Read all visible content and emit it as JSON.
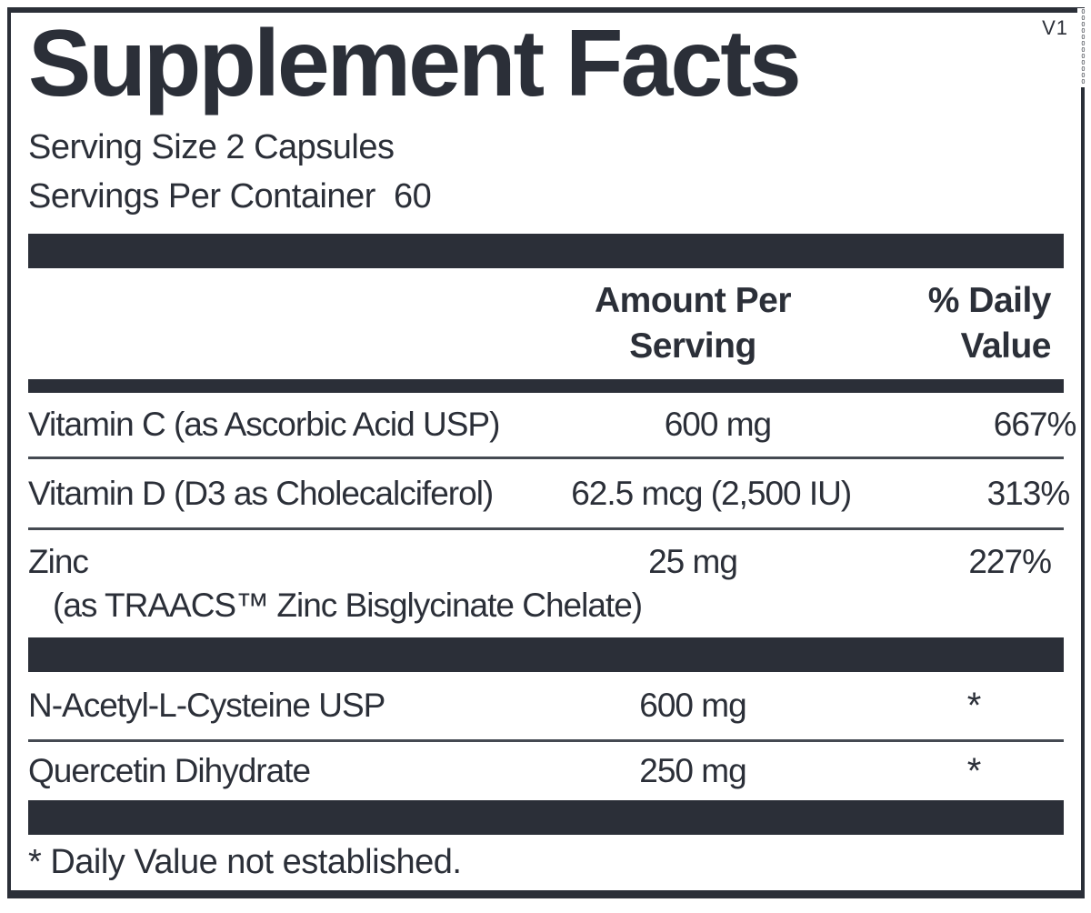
{
  "meta": {
    "version_label": "V1",
    "edge_code": "000000000000"
  },
  "title": "Supplement Facts",
  "serving": {
    "size_line": "Serving Size 2 Capsules",
    "per_container_line": "Servings Per Container  60"
  },
  "columns": {
    "amount_header": "Amount Per\nServing",
    "daily_value_header": "% Daily\nValue"
  },
  "rows": [
    {
      "name": "Vitamin C (as Ascorbic Acid USP)",
      "amount": "600 mg",
      "dv": "667%"
    },
    {
      "name": "Vitamin D (D3 as Cholecalciferol)",
      "amount": "62.5 mcg (2,500 IU)",
      "dv": "313%"
    },
    {
      "name": "Zinc",
      "amount": "25 mg",
      "dv": "227%",
      "note": "(as TRAACS™ Zinc Bisglycinate Chelate)"
    },
    {
      "name": "N-Acetyl-L-Cysteine USP",
      "amount": "600 mg",
      "dv": "*"
    },
    {
      "name": "Quercetin Dihydrate",
      "amount": "250 mg",
      "dv": "*"
    }
  ],
  "footnote": "* Daily Value not established.",
  "colors": {
    "ink": "#2b2f38",
    "separator": "#454a52",
    "background": "#ffffff"
  }
}
